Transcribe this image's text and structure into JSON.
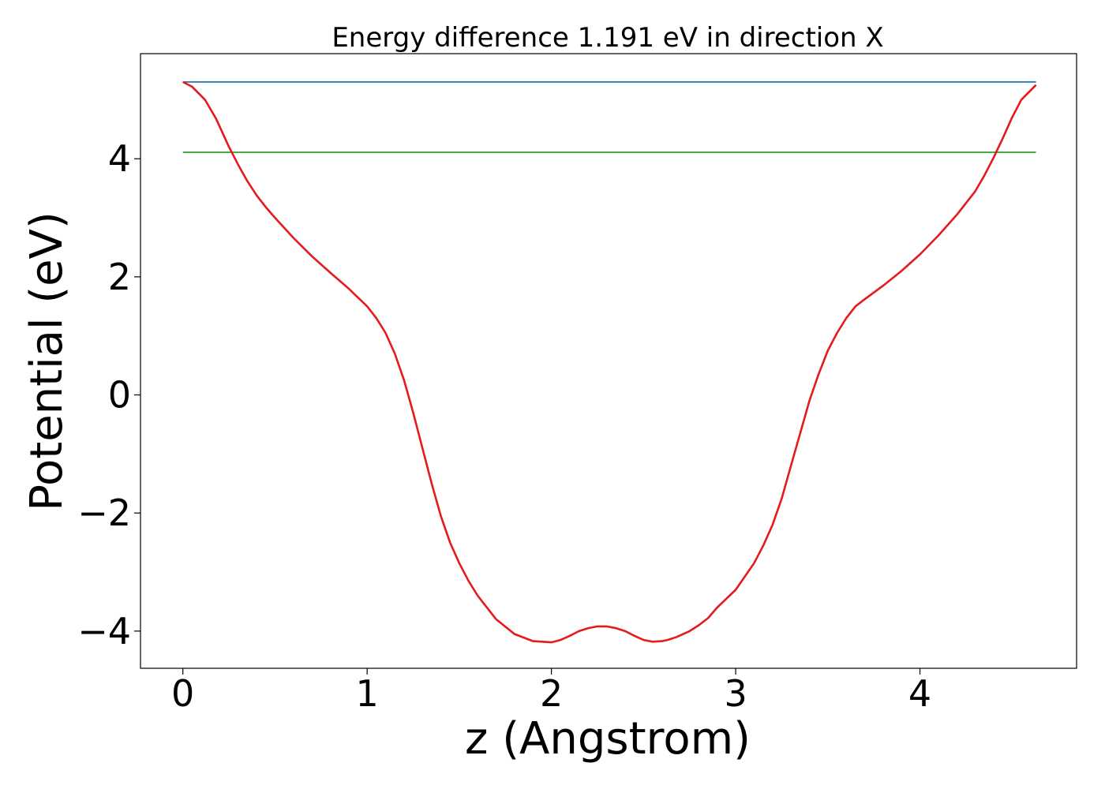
{
  "chart_data": {
    "type": "line",
    "title": "Energy difference 1.191 eV in direction X",
    "xlabel": "z (Angstrom)",
    "ylabel": "Potential (eV)",
    "xlim": [
      -0.23,
      4.85
    ],
    "ylim": [
      -4.63,
      5.78
    ],
    "xticks": [
      0,
      1,
      2,
      3,
      4
    ],
    "xtick_labels": [
      "0",
      "1",
      "2",
      "3",
      "4"
    ],
    "yticks": [
      -4,
      -2,
      0,
      2,
      4
    ],
    "ytick_labels": [
      "−4",
      "−2",
      "0",
      "2",
      "4"
    ],
    "grid": false,
    "series": [
      {
        "color": "#1f77b4",
        "x": [
          0,
          4.63
        ],
        "y": [
          5.3,
          5.3
        ]
      },
      {
        "color": "#2ca02c",
        "x": [
          0,
          4.63
        ],
        "y": [
          4.11,
          4.11
        ]
      },
      {
        "color": "#e41a1c",
        "x": [
          0,
          0.05,
          0.12,
          0.18,
          0.25,
          0.3,
          0.35,
          0.4,
          0.45,
          0.5,
          0.6,
          0.7,
          0.8,
          0.9,
          1.0,
          1.05,
          1.1,
          1.15,
          1.2,
          1.25,
          1.3,
          1.35,
          1.4,
          1.45,
          1.5,
          1.55,
          1.6,
          1.7,
          1.8,
          1.9,
          2.0,
          2.05,
          2.1,
          2.15,
          2.2,
          2.25,
          2.3,
          2.35,
          2.4,
          2.45,
          2.5,
          2.55,
          2.6,
          2.63,
          2.68,
          2.75,
          2.8,
          2.85,
          2.9,
          3.0,
          3.1,
          3.15,
          3.2,
          3.25,
          3.3,
          3.35,
          3.4,
          3.45,
          3.5,
          3.55,
          3.6,
          3.65,
          3.7,
          3.8,
          3.9,
          4.0,
          4.1,
          4.2,
          4.3,
          4.35,
          4.4,
          4.45,
          4.5,
          4.55,
          4.63
        ],
        "y": [
          5.3,
          5.22,
          5.0,
          4.68,
          4.2,
          3.9,
          3.62,
          3.38,
          3.18,
          3.0,
          2.66,
          2.35,
          2.07,
          1.8,
          1.5,
          1.3,
          1.05,
          0.7,
          0.25,
          -0.3,
          -0.9,
          -1.5,
          -2.05,
          -2.5,
          -2.85,
          -3.15,
          -3.4,
          -3.8,
          -4.05,
          -4.17,
          -4.19,
          -4.15,
          -4.08,
          -4.0,
          -3.95,
          -3.92,
          -3.92,
          -3.95,
          -4.0,
          -4.08,
          -4.15,
          -4.18,
          -4.17,
          -4.15,
          -4.1,
          -4.0,
          -3.9,
          -3.78,
          -3.6,
          -3.3,
          -2.85,
          -2.55,
          -2.2,
          -1.75,
          -1.2,
          -0.65,
          -0.1,
          0.35,
          0.75,
          1.05,
          1.3,
          1.5,
          1.62,
          1.85,
          2.1,
          2.38,
          2.7,
          3.05,
          3.45,
          3.72,
          4.02,
          4.35,
          4.7,
          5.0,
          5.25
        ]
      }
    ]
  }
}
